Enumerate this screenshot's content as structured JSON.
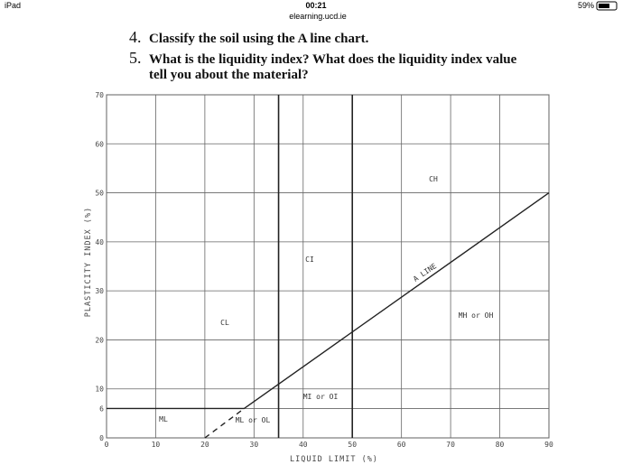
{
  "status_bar": {
    "device": "iPad",
    "time": "00:21",
    "url": "elearning.ucd.ie",
    "battery": "59%"
  },
  "questions": [
    {
      "number": "4.",
      "lines": [
        "Classify the soil using the A line chart."
      ]
    },
    {
      "number": "5.",
      "lines": [
        "What is the liquidity index? What does the liquidity index value",
        "tell you about the material?"
      ]
    }
  ],
  "chart_data": {
    "type": "line",
    "xlabel": "LIQUID LIMIT (%)",
    "ylabel": "PLASTICITY INDEX (%)",
    "xlim": [
      0,
      90
    ],
    "ylim": [
      0,
      70
    ],
    "xticks": [
      0,
      10,
      20,
      30,
      40,
      50,
      60,
      70,
      80,
      90
    ],
    "yticks": [
      0,
      6,
      10,
      20,
      30,
      40,
      50,
      60,
      70
    ],
    "grid": true,
    "vlines": [
      35,
      50
    ],
    "lines": [
      {
        "x": [
          0,
          28,
          90
        ],
        "y": [
          6,
          6,
          50
        ],
        "color": "#222"
      },
      {
        "x": [
          20,
          28
        ],
        "y": [
          0,
          6
        ],
        "color": "#222",
        "dashed": true
      }
    ],
    "annotations": [
      "CH",
      "CI",
      "CL",
      "MH or OH",
      "MI or OI",
      "ML",
      "ML or OL",
      "A LINE"
    ]
  }
}
